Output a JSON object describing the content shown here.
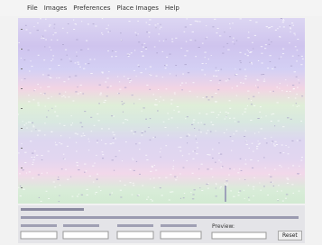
{
  "menu": {
    "items": [
      "File",
      "Images",
      "Preferences",
      "Place Images",
      "Help"
    ]
  },
  "controls": {
    "preview_label": "Preview:",
    "reset_button": "Reset"
  }
}
